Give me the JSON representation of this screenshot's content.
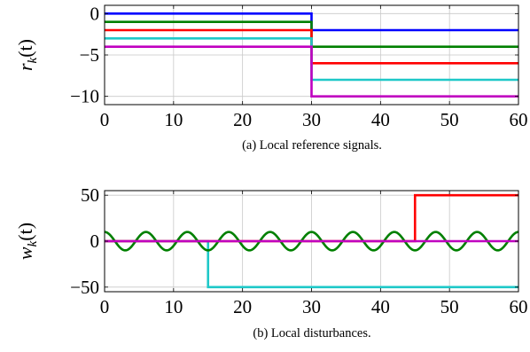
{
  "chart_data": [
    {
      "type": "line",
      "caption": "(a) Local reference signals.",
      "ylabel": "r_k(t)",
      "ylabel_parts": {
        "base": "r",
        "sub": "k",
        "arg": "(t)"
      },
      "xlim": [
        0,
        60
      ],
      "ylim": [
        -11,
        1
      ],
      "xticks": [
        0,
        10,
        20,
        30,
        40,
        50,
        60
      ],
      "yticks": [
        0,
        -5,
        -10
      ],
      "ytick_labels": [
        "0",
        "−5",
        "−10"
      ],
      "grid": true,
      "series": [
        {
          "color": "#0000ff",
          "x": [
            0,
            30,
            30,
            60
          ],
          "y": [
            0,
            0,
            -2,
            -2
          ]
        },
        {
          "color": "#008000",
          "x": [
            0,
            30,
            30,
            60
          ],
          "y": [
            -1,
            -1,
            -4,
            -4
          ]
        },
        {
          "color": "#ff0000",
          "x": [
            0,
            30,
            30,
            60
          ],
          "y": [
            -2,
            -2,
            -6,
            -6
          ]
        },
        {
          "color": "#1ec8c8",
          "x": [
            0,
            30,
            30,
            60
          ],
          "y": [
            -3,
            -3,
            -8,
            -8
          ]
        },
        {
          "color": "#c000c0",
          "x": [
            0,
            30,
            30,
            60
          ],
          "y": [
            -4,
            -4,
            -10,
            -10
          ]
        }
      ]
    },
    {
      "type": "line",
      "caption": "(b) Local disturbances.",
      "ylabel": "w_k(t)",
      "ylabel_parts": {
        "base": "w",
        "sub": "k",
        "arg": "(t)"
      },
      "xlim": [
        0,
        60
      ],
      "ylim": [
        -55,
        55
      ],
      "xticks": [
        0,
        10,
        20,
        30,
        40,
        50,
        60
      ],
      "yticks": [
        50,
        0,
        -50
      ],
      "ytick_labels": [
        "50",
        "0",
        "−50"
      ],
      "grid": true,
      "series": [
        {
          "color": "#1ec8c8",
          "x": [
            0,
            15,
            15,
            60
          ],
          "y": [
            0,
            0,
            -50,
            -50
          ]
        },
        {
          "color": "#ff0000",
          "x": [
            0,
            45,
            45,
            60
          ],
          "y": [
            0,
            0,
            50,
            50
          ]
        },
        {
          "color": "#008000",
          "function": "10*cos(2*pi*t/6)",
          "t_range": [
            0,
            60
          ]
        },
        {
          "color": "#c000c0",
          "x": [
            0,
            60
          ],
          "y": [
            0,
            0
          ]
        }
      ]
    }
  ]
}
